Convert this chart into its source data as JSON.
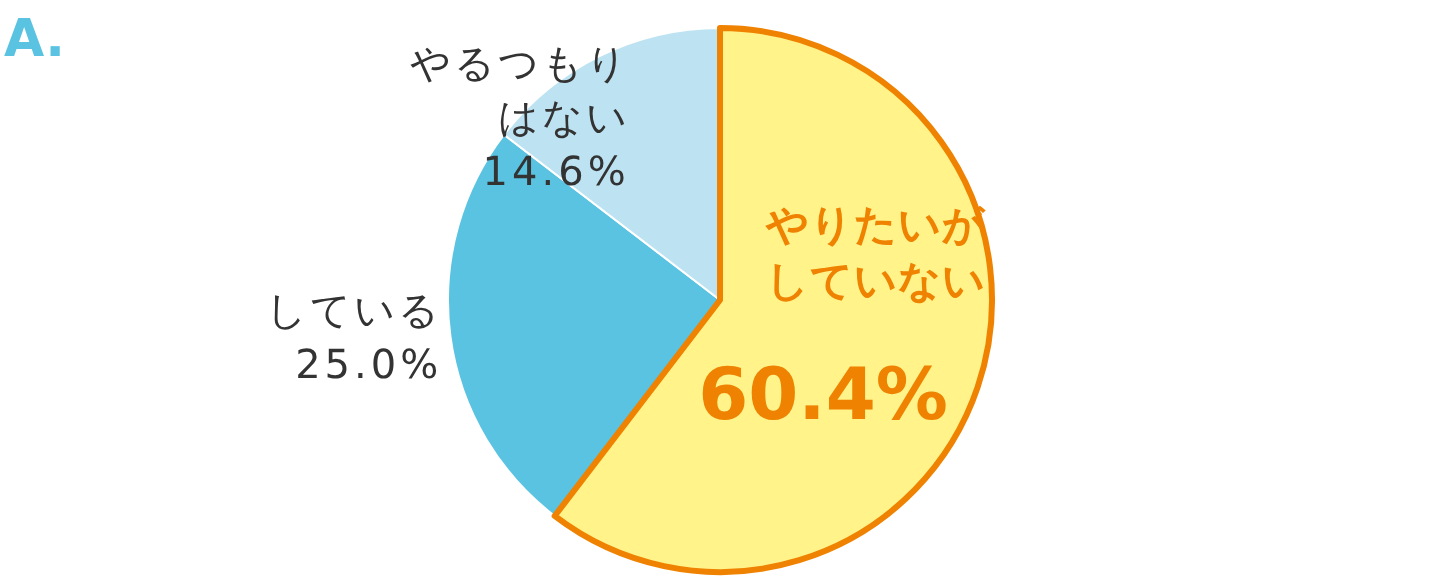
{
  "chart_data": {
    "type": "pie",
    "title": "A.",
    "categories": [
      "やりたいがしていない",
      "している",
      "やるつもりはない"
    ],
    "values": [
      60.4,
      25.0,
      14.6
    ],
    "value_labels": [
      "60.4%",
      "25.0%",
      "14.6%"
    ],
    "colors": [
      "#fff38a",
      "#5ac3e2",
      "#bde3f2"
    ]
  }
}
